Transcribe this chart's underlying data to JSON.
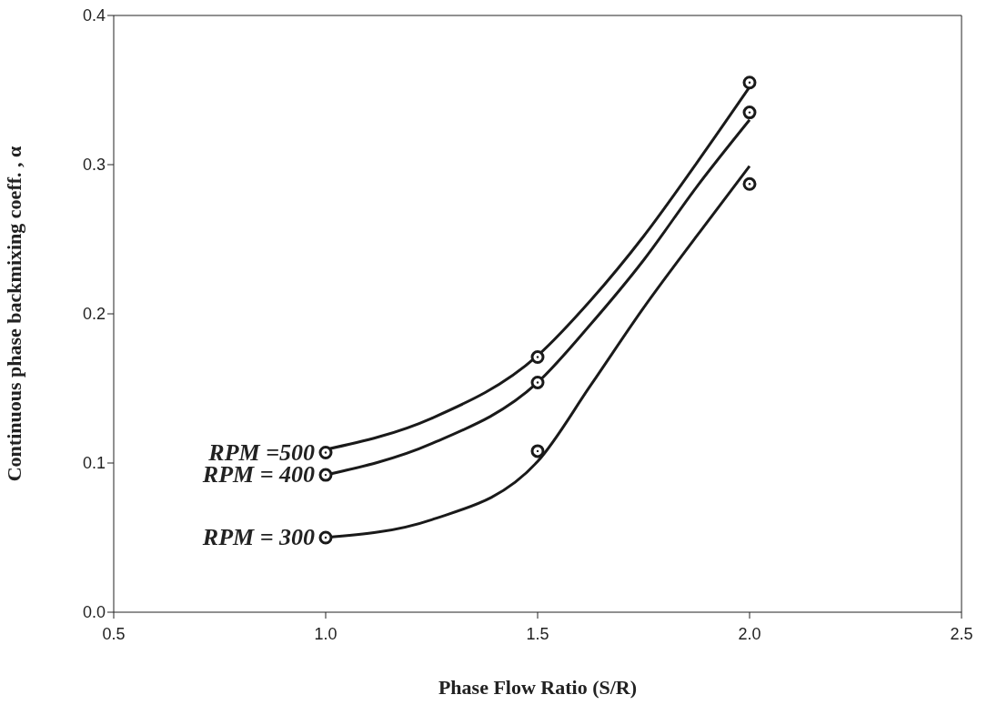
{
  "chart_data": {
    "type": "scatter",
    "xlabel": "Phase Flow Ratio (S/R)",
    "ylabel": "Continuous phase backmixing coeff. , α",
    "xlim": [
      0.5,
      2.5
    ],
    "xticks": [
      {
        "value": 0.5,
        "label": "0.5"
      },
      {
        "value": 1,
        "label": "1.0"
      },
      {
        "value": 1.5,
        "label": "1.5"
      },
      {
        "value": 2,
        "label": "2.0"
      },
      {
        "value": 2.5,
        "label": "2.5"
      }
    ],
    "ylim": [
      0,
      0.4
    ],
    "yticks": [
      {
        "value": 0,
        "label": "0.0"
      },
      {
        "value": 0.1,
        "label": "0.1"
      },
      {
        "value": 0.2,
        "label": "0.2"
      },
      {
        "value": 0.3,
        "label": "0.3"
      },
      {
        "value": 0.4,
        "label": "0.4"
      }
    ],
    "grid": false,
    "legend": false,
    "series": [
      {
        "color": "#1a1a1a",
        "marker": "circle",
        "x": [
          1,
          1.5,
          2
        ],
        "values": [
          0.107,
          0.171,
          0.355
        ]
      },
      {
        "color": "#1a1a1a",
        "marker": "circle",
        "x": [
          1,
          1.5,
          2
        ],
        "values": [
          0.092,
          0.154,
          0.335
        ]
      },
      {
        "color": "#1a1a1a",
        "marker": "circle",
        "x": [
          1,
          1.5,
          2
        ],
        "values": [
          0.05,
          0.108,
          0.287
        ]
      },
      {
        "type": "line",
        "color": "#1a1a1a",
        "x": [
          1,
          1.25,
          1.5,
          1.625,
          1.75,
          1.875,
          2
        ],
        "values": [
          0.109,
          0.13,
          0.172,
          0.209,
          0.252,
          0.301,
          0.352
        ]
      },
      {
        "type": "line",
        "color": "#1a1a1a",
        "x": [
          1,
          1.25,
          1.5,
          1.625,
          1.75,
          1.875,
          2
        ],
        "values": [
          0.092,
          0.113,
          0.154,
          0.193,
          0.236,
          0.285,
          0.33
        ]
      },
      {
        "type": "line",
        "color": "#1a1a1a",
        "x": [
          1,
          1.25,
          1.5,
          1.625,
          1.75,
          1.875,
          2
        ],
        "values": [
          0.05,
          0.062,
          0.101,
          0.152,
          0.204,
          0.252,
          0.299
        ]
      }
    ],
    "annotations": [
      "RPM =500",
      "RPM = 400",
      "RPM = 300"
    ]
  }
}
